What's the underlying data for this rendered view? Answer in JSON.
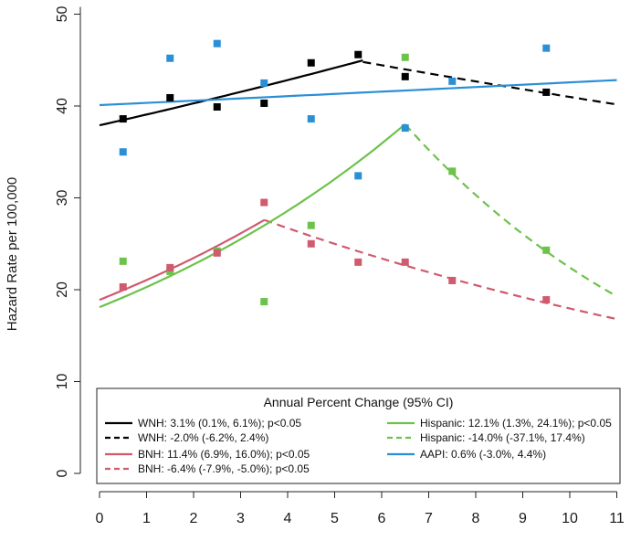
{
  "chart_data": {
    "type": "scatter",
    "xlabel": "",
    "ylabel": "Hazard Rate per 100,000",
    "xlim": [
      0,
      11
    ],
    "ylim": [
      0,
      50
    ],
    "x_ticks": [
      "0",
      "1",
      "2",
      "3",
      "4",
      "5",
      "6",
      "7",
      "8",
      "9",
      "10",
      "11"
    ],
    "y_ticks": [
      "0",
      "10",
      "20",
      "30",
      "40",
      "50"
    ],
    "grid": false,
    "colors": {
      "WNH": "#000000",
      "BNH": "#d05a6e",
      "Hispanic": "#6cc24a",
      "AAPI": "#2b8fd6"
    },
    "points": [
      {
        "group": "WNH",
        "values": [
          [
            0.5,
            38.6
          ],
          [
            1.5,
            40.9
          ],
          [
            2.5,
            39.9
          ],
          [
            3.5,
            40.3
          ],
          [
            4.5,
            44.7
          ],
          [
            5.5,
            45.6
          ],
          [
            6.5,
            43.2
          ],
          [
            9.5,
            41.5
          ]
        ]
      },
      {
        "group": "AAPI",
        "values": [
          [
            0.5,
            35.0
          ],
          [
            1.5,
            45.2
          ],
          [
            2.5,
            46.8
          ],
          [
            3.5,
            42.5
          ],
          [
            4.5,
            38.6
          ],
          [
            5.5,
            32.4
          ],
          [
            6.5,
            37.6
          ],
          [
            7.5,
            42.7
          ],
          [
            9.5,
            46.3
          ]
        ]
      },
      {
        "group": "Hispanic",
        "values": [
          [
            0.5,
            23.1
          ],
          [
            1.5,
            22.0
          ],
          [
            2.5,
            24.2
          ],
          [
            3.5,
            18.7
          ],
          [
            4.5,
            27.0
          ],
          [
            6.5,
            45.3
          ],
          [
            7.5,
            32.9
          ],
          [
            9.5,
            24.3
          ]
        ]
      },
      {
        "group": "BNH",
        "values": [
          [
            0.5,
            20.3
          ],
          [
            1.5,
            22.4
          ],
          [
            2.5,
            24.0
          ],
          [
            3.5,
            29.5
          ],
          [
            4.5,
            25.0
          ],
          [
            5.5,
            23.0
          ],
          [
            6.5,
            23.0
          ],
          [
            7.5,
            21.0
          ],
          [
            9.5,
            18.9
          ]
        ]
      }
    ],
    "trend_lines": [
      {
        "group": "WNH",
        "style": "solid",
        "x_start": 0,
        "x_end": 5.6,
        "y_start": 37.9,
        "apc": 3.1
      },
      {
        "group": "WNH",
        "style": "dashed",
        "x_start": 5.6,
        "x_end": 11,
        "y_start": 44.8,
        "apc": -2.0
      },
      {
        "group": "BNH",
        "style": "solid",
        "x_start": 0,
        "x_end": 3.5,
        "y_start": 18.9,
        "apc": 11.4
      },
      {
        "group": "BNH",
        "style": "dashed",
        "x_start": 3.5,
        "x_end": 11,
        "y_start": 27.6,
        "apc": -6.4
      },
      {
        "group": "Hispanic",
        "style": "solid",
        "x_start": 0,
        "x_end": 6.5,
        "y_start": 18.1,
        "apc": 12.1
      },
      {
        "group": "Hispanic",
        "style": "dashed",
        "x_start": 6.5,
        "x_end": 11,
        "y_start": 38.0,
        "apc": -14.0
      },
      {
        "group": "AAPI",
        "style": "solid",
        "x_start": 0,
        "x_end": 11,
        "y_start": 40.1,
        "apc": 0.6
      }
    ],
    "legend": {
      "title": "Annual Percent Change (95% CI)",
      "placement": "bottom",
      "entries": [
        {
          "group": "WNH",
          "style": "solid",
          "label": "WNH: 3.1% (0.1%, 6.1%); p<0.05"
        },
        {
          "group": "WNH",
          "style": "dashed",
          "label": "WNH: -2.0% (-6.2%, 2.4%)"
        },
        {
          "group": "BNH",
          "style": "solid",
          "label": "BNH: 11.4% (6.9%, 16.0%); p<0.05"
        },
        {
          "group": "BNH",
          "style": "dashed",
          "label": "BNH: -6.4% (-7.9%, -5.0%); p<0.05"
        },
        {
          "group": "Hispanic",
          "style": "solid",
          "label": "Hispanic: 12.1% (1.3%, 24.1%); p<0.05"
        },
        {
          "group": "Hispanic",
          "style": "dashed",
          "label": "Hispanic: -14.0% (-37.1%, 17.4%)"
        },
        {
          "group": "AAPI",
          "style": "solid",
          "label": "AAPI: 0.6% (-3.0%, 4.4%)"
        }
      ]
    }
  }
}
